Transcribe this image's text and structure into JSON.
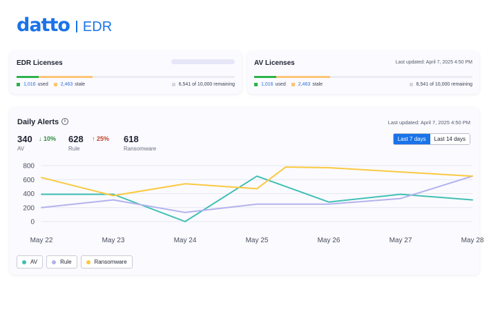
{
  "brand": {
    "logo": "datto",
    "product": "EDR"
  },
  "edr_licenses": {
    "title": "EDR Licenses",
    "used": "1,016",
    "used_label": "used",
    "stale": "2,463",
    "stale_label": "stale",
    "remaining": "6,541 of 10,000 remaining",
    "used_fraction": 0.1016,
    "stale_fraction": 0.2463
  },
  "av_licenses": {
    "title": "AV Licenses",
    "last_updated": "Last updated: April 7, 2025 4:50 PM",
    "used": "1,016",
    "used_label": "used",
    "stale": "2,463",
    "stale_label": "stale",
    "remaining": "6,541 of 10,000 remaining",
    "used_fraction": 0.1016,
    "stale_fraction": 0.2463
  },
  "daily_alerts": {
    "title": "Daily Alerts",
    "info_icon": "info-icon",
    "last_updated": "Last updated: April 7, 2025 4:50 PM",
    "stats": [
      {
        "value": "340",
        "label": "AV",
        "delta": "10%",
        "delta_arrow": "↓",
        "delta_direction": "down"
      },
      {
        "value": "628",
        "label": "Rule",
        "delta": "25%",
        "delta_arrow": "↑",
        "delta_direction": "up"
      },
      {
        "value": "618",
        "label": "Ransomware"
      }
    ],
    "range_options": [
      "Last 7 days",
      "Last 14 days"
    ],
    "selected_range": "Last 7 days"
  },
  "colors": {
    "av": "#40bfb4",
    "rule": "#b3b2ec",
    "ransomware": "#fbc93e",
    "accent": "#1a73e8"
  },
  "chart_data": {
    "type": "line",
    "x_labels": [
      "May 22",
      "May 23",
      "May 24",
      "May 25",
      "May 26",
      "May 27",
      "May 28"
    ],
    "y_ticks": [
      0,
      200,
      400,
      600,
      800
    ],
    "ylim": [
      0,
      800
    ],
    "grid": true,
    "legend_placement": "bottom-left",
    "series": [
      {
        "name": "AV",
        "key": "av",
        "points": [
          [
            0,
            390
          ],
          [
            1,
            390
          ],
          [
            2,
            0
          ],
          [
            3,
            650
          ],
          [
            4,
            280
          ],
          [
            5,
            390
          ],
          [
            6,
            310
          ]
        ]
      },
      {
        "name": "Rule",
        "key": "rule",
        "points": [
          [
            0,
            200
          ],
          [
            1,
            310
          ],
          [
            2,
            130
          ],
          [
            3,
            250
          ],
          [
            4,
            250
          ],
          [
            5,
            330
          ],
          [
            6,
            650
          ]
        ]
      },
      {
        "name": "Ransomware",
        "key": "ransomware",
        "points": [
          [
            0,
            630
          ],
          [
            1,
            370
          ],
          [
            2,
            540
          ],
          [
            3,
            470
          ],
          [
            3.4,
            780
          ],
          [
            4,
            770
          ],
          [
            5,
            710
          ],
          [
            6,
            650
          ]
        ]
      }
    ]
  }
}
